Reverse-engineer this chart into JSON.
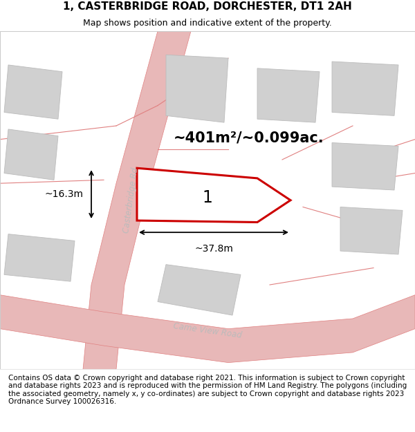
{
  "title": "1, CASTERBRIDGE ROAD, DORCHESTER, DT1 2AH",
  "subtitle": "Map shows position and indicative extent of the property.",
  "footer": "Contains OS data © Crown copyright and database right 2021. This information is subject to Crown copyright and database rights 2023 and is reproduced with the permission of HM Land Registry. The polygons (including the associated geometry, namely x, y co-ordinates) are subject to Crown copyright and database rights 2023 Ordnance Survey 100026316.",
  "area_label": "~401m²/~0.099ac.",
  "width_label": "~37.8m",
  "height_label": "~16.3m",
  "plot_number": "1",
  "map_bg": "#f0f0f0",
  "road_fill_color": "#e8b8b8",
  "road_line_color": "#e08080",
  "building_color": "#d0d0d0",
  "building_edge": "#bbbbbb",
  "plot_edge_color": "#cc0000",
  "road_label_color": "#bbbbbb",
  "casterbridge_road_label": "Casterbridge Rd",
  "came_view_road_label": "Came View Road",
  "footer_fontsize": 7.5,
  "title_fontsize": 11,
  "subtitle_fontsize": 9
}
